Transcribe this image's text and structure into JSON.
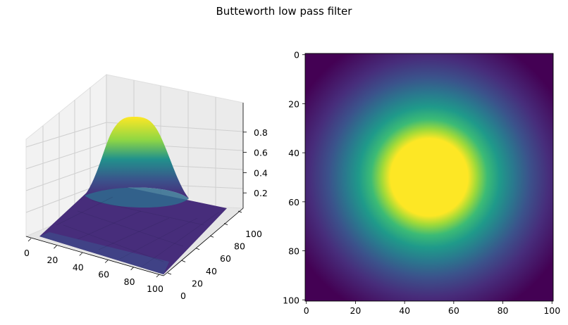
{
  "figure": {
    "title": "Butteworth low pass filter"
  },
  "colors": {
    "viridis_low": "#440154",
    "viridis_mid": "#21918c",
    "viridis_high": "#fde725",
    "pane_face": "#f2f2f2",
    "grid": "#d0d0d0"
  },
  "chart_data": [
    {
      "type": "surface",
      "title": "",
      "colormap": "viridis",
      "function": "1 / (1 + (D/D0)^(2n)), centered at (50, 50)",
      "x": {
        "label": "",
        "lim": [
          0,
          100
        ],
        "ticks": [
          0,
          20,
          40,
          60,
          80,
          100
        ]
      },
      "y": {
        "label": "",
        "lim": [
          0,
          100
        ],
        "ticks": [
          0,
          20,
          40,
          60,
          80,
          100
        ]
      },
      "z": {
        "label": "",
        "lim": [
          0,
          1
        ],
        "ticks": [
          0.2,
          0.4,
          0.6,
          0.8
        ]
      },
      "peak": 1.0,
      "corner_value": 0.02,
      "grid": true
    },
    {
      "type": "heatmap",
      "title": "",
      "colormap": "viridis",
      "x": {
        "label": "",
        "lim": [
          0,
          100
        ],
        "ticks": [
          0,
          20,
          40,
          60,
          80,
          100
        ]
      },
      "y": {
        "label": "",
        "lim": [
          100,
          0
        ],
        "ticks": [
          0,
          20,
          40,
          60,
          80,
          100
        ]
      },
      "center": [
        50,
        50
      ],
      "peak": 1.0,
      "corner_value": 0.02,
      "grid": false
    }
  ]
}
